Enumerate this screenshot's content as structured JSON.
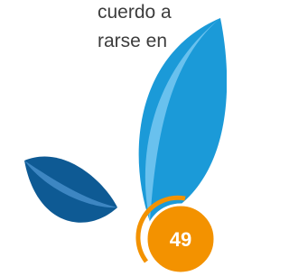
{
  "text_lines": [
    "cuerdo a",
    "rarse en"
  ],
  "page_number": "49"
}
